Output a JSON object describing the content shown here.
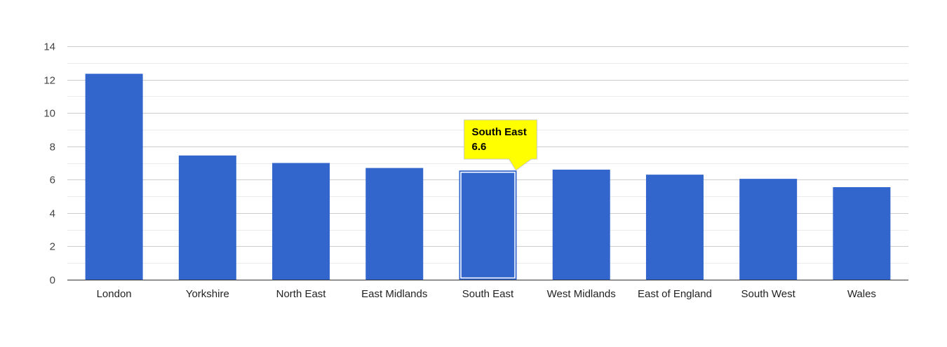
{
  "chart_data": {
    "type": "bar",
    "categories": [
      "London",
      "Yorkshire",
      "North East",
      "East Midlands",
      "South East",
      "West Midlands",
      "East of England",
      "South West",
      "Wales"
    ],
    "values": [
      12.35,
      7.45,
      7.0,
      6.7,
      6.55,
      6.6,
      6.3,
      6.05,
      5.55
    ],
    "ylim": [
      0,
      14
    ],
    "yticks": [
      0,
      2,
      4,
      6,
      8,
      10,
      12,
      14
    ],
    "title": "",
    "xlabel": "",
    "ylabel": "",
    "grid": true,
    "legend": "none",
    "colors": {
      "bar": "#3366cc",
      "grid": "#cccccc",
      "minor_grid": "#ebebeb",
      "axis": "#333333",
      "tooltip_bg": "#ffff00",
      "tooltip_border": "#cccccc",
      "highlight_border": "#ffffff"
    },
    "tooltip": {
      "category": "South East",
      "value": "6.6"
    },
    "highlighted_index": 4
  }
}
